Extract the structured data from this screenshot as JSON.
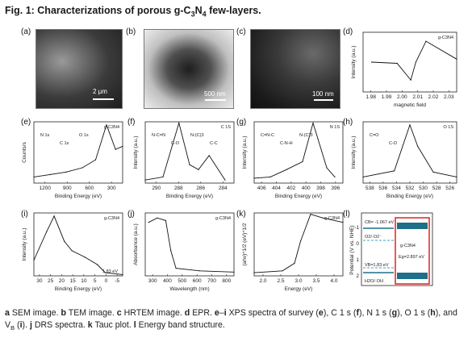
{
  "title": {
    "prefix": "Fig. 1: Characterizations of porous g-C",
    "sub1": "3",
    "mid": "N",
    "sub2": "4",
    "suffix": " few-layers."
  },
  "panels": {
    "a": {
      "label": "(a)",
      "scale": "2 μm"
    },
    "b": {
      "label": "(b)",
      "scale": "500 nm"
    },
    "c": {
      "label": "(c)",
      "scale": "100 nm"
    },
    "d": {
      "label": "(d)",
      "legend": "g-C3N4",
      "xlabel": "magnetic field",
      "ylabel": "Intensity (a.u.)",
      "xticks": [
        "1.98",
        "1.99",
        "2.00",
        "2.01",
        "2.02",
        "2.03"
      ]
    },
    "e": {
      "label": "(e)",
      "legend": "g-C3N4",
      "xlabel": "Binding Energy (eV)",
      "ylabel": "Counts/s",
      "xticks": [
        "1200",
        "900",
        "600",
        "300"
      ],
      "peaks": [
        "N 1s",
        "C 1s",
        "O 1s"
      ]
    },
    "f": {
      "label": "(f)",
      "legend": "C 1S",
      "xlabel": "Binding Energy (eV)",
      "ylabel": "Intensity (a.u.)",
      "xticks": [
        "290",
        "288",
        "286",
        "284"
      ],
      "peaks": [
        "N-C=N",
        "C-O",
        "N-(C)3",
        "C-C"
      ]
    },
    "g": {
      "label": "(g)",
      "legend": "N 1S",
      "xlabel": "Binding Energy (eV)",
      "ylabel": "Intensity (a.u.)",
      "xticks": [
        "406",
        "404",
        "402",
        "400",
        "398",
        "396"
      ],
      "peaks": [
        "C=N-C",
        "C-N-H",
        "N-(C)3"
      ]
    },
    "h": {
      "label": "(h)",
      "legend": "O 1S",
      "xlabel": "Binding Energy (eV)",
      "ylabel": "Intensity (a.u.)",
      "xticks": [
        "538",
        "536",
        "534",
        "532",
        "530",
        "528",
        "526"
      ],
      "peaks": [
        "C=O",
        "C-O"
      ]
    },
    "i": {
      "label": "(i)",
      "legend": "g-C3N4",
      "xlabel": "Binding Energy (eV)",
      "ylabel": "Intensity (a.u.)",
      "xticks": [
        "30",
        "25",
        "20",
        "15",
        "10",
        "5",
        "0",
        "-5"
      ],
      "vb": "1.83 eV"
    },
    "j": {
      "label": "(j)",
      "legend": "g-C3N4",
      "xlabel": "Wavelength (nm)",
      "ylabel": "Absorbance (a.u.)",
      "xticks": [
        "300",
        "400",
        "500",
        "600",
        "700",
        "800"
      ]
    },
    "k": {
      "label": "(k)",
      "legend": "g-C3N4",
      "xlabel": "Energy (eV)",
      "ylabel": "(ahν)^1/2 (eV)^1/2",
      "xticks": [
        "2.0",
        "2.5",
        "3.0",
        "3.5",
        "4.0"
      ]
    },
    "l": {
      "label": "(l)",
      "ylabel": "Potential (V vs. NHE)",
      "yticks": [
        "-1",
        "0",
        "1",
        "2"
      ],
      "cb": "CB= -1.067 eV",
      "vb": "VB=1.83 eV",
      "o2": "O2/·O2⁻",
      "h2o": "H2O/·OH",
      "material": "g-C3N4",
      "eg": "Eg=2.897 eV"
    }
  },
  "caption": {
    "a": "a",
    "a_t": " SEM image. ",
    "b": "b",
    "b_t": " TEM image. ",
    "c": "c",
    "c_t": " HRTEM image. ",
    "d": "d",
    "d_t": " EPR. ",
    "ei": "e",
    "ei_dash": "–",
    "ei2": "i",
    "ei_t": " XPS spectra of survey (",
    "e2": "e",
    "c1s": "), C 1 s (",
    "f2": "f",
    "n1s": "), N 1 s (",
    "g2": "g",
    "o1s": "), O 1 s (",
    "h2": "h",
    "vb": "), and V",
    "vb_sub": "B",
    "vb2": " (",
    "i2": "i",
    "vb3": "). ",
    "j": "j",
    "j_t": " DRS spectra. ",
    "k": "k",
    "k_t": " Tauc plot. ",
    "l": "l",
    "l_t": " Energy band structure."
  },
  "chart_data": [
    {
      "type": "line",
      "panel": "d",
      "x": [
        1.98,
        1.995,
        2.003,
        2.006,
        2.012,
        2.03
      ],
      "values": [
        0.5,
        0.48,
        0.2,
        0.5,
        0.85,
        0.55
      ],
      "xlim": [
        1.975,
        2.03
      ]
    },
    {
      "type": "line",
      "panel": "e",
      "x": [
        1300,
        1100,
        900,
        700,
        535,
        400,
        288,
        200
      ],
      "values": [
        0.1,
        0.14,
        0.18,
        0.25,
        0.38,
        0.95,
        0.55,
        0.6
      ],
      "xlim": [
        1300,
        200
      ]
    },
    {
      "type": "line",
      "panel": "f",
      "x": [
        292,
        290,
        288.2,
        287,
        286,
        284.8,
        283
      ],
      "values": [
        0.05,
        0.1,
        0.98,
        0.3,
        0.22,
        0.45,
        0.05
      ],
      "xlim": [
        292,
        282
      ]
    },
    {
      "type": "line",
      "panel": "g",
      "x": [
        406,
        404,
        402,
        400,
        398.7,
        397,
        396
      ],
      "values": [
        0.08,
        0.1,
        0.22,
        0.35,
        0.98,
        0.25,
        0.1
      ],
      "xlim": [
        406,
        395
      ]
    },
    {
      "type": "line",
      "panel": "h",
      "x": [
        538,
        534,
        532,
        531,
        529,
        526
      ],
      "values": [
        0.1,
        0.2,
        0.95,
        0.6,
        0.18,
        0.1
      ],
      "xlim": [
        538,
        526
      ]
    },
    {
      "type": "line",
      "panel": "i",
      "x": [
        30,
        25,
        22,
        18,
        15,
        10,
        5,
        1.83,
        -5
      ],
      "values": [
        0.25,
        0.7,
        0.95,
        0.55,
        0.4,
        0.3,
        0.18,
        0.05,
        0.02
      ],
      "xlim": [
        30,
        -5
      ]
    },
    {
      "type": "line",
      "panel": "j",
      "x": [
        300,
        350,
        400,
        430,
        460,
        600,
        800
      ],
      "values": [
        0.85,
        0.92,
        0.88,
        0.4,
        0.12,
        0.08,
        0.06
      ],
      "xlim": [
        280,
        800
      ]
    },
    {
      "type": "line",
      "panel": "k",
      "x": [
        1.8,
        2.5,
        2.8,
        2.95,
        3.2,
        3.5,
        4.0
      ],
      "values": [
        0.05,
        0.08,
        0.2,
        0.55,
        0.98,
        0.92,
        0.85
      ],
      "xlim": [
        1.8,
        4.0
      ]
    }
  ]
}
